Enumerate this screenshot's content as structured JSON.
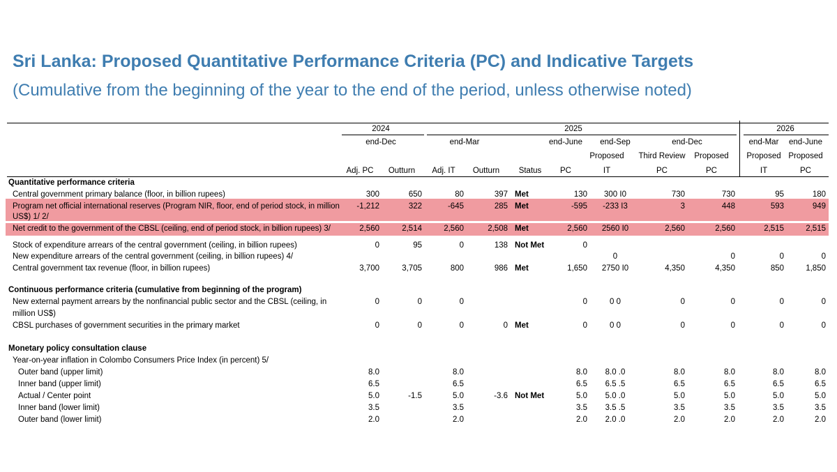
{
  "title": "Sri Lanka: Proposed Quantitative Performance Criteria (PC) and Indicative Targets",
  "subtitle": "(Cumulative from the beginning of the year to the end of the period, unless otherwise noted)",
  "header": {
    "years": [
      "2024",
      "2025",
      "2026"
    ],
    "periods": [
      "end-Dec",
      "end-Mar",
      "end-June",
      "end-Sep",
      "end-Dec",
      "end-Mar",
      "end-June"
    ],
    "row2": [
      "Proposed",
      "Third Review",
      "Proposed",
      "Proposed",
      "Proposed"
    ],
    "cols": [
      "Adj. PC",
      "Outturn",
      "Adj. IT",
      "Outturn",
      "Status",
      "PC",
      "IT",
      "PC",
      "PC",
      "IT",
      "PC"
    ]
  },
  "sections": [
    {
      "title": "Quantitative performance criteria",
      "rows": [
        {
          "label": "Central government primary balance (floor, in billion rupees)",
          "values": [
            "300",
            "650",
            "80",
            "397",
            "Met",
            "130",
            "300 I0",
            "730",
            "730",
            "95",
            "180"
          ]
        },
        {
          "label": "Program net official international reserves (Program NIR, floor, end of period stock, in million",
          "label2": "US$) 1/ 2/",
          "values": [
            "-1,212",
            "322",
            "-645",
            "285",
            "Met",
            "-595",
            "-233 I3",
            "3",
            "448",
            "593",
            "949"
          ]
        },
        {
          "label": "Net credit to the government of the CBSL (ceiling, end of period stock, in billion rupees) 3/",
          "values": [
            "2,560",
            "2,514",
            "2,560",
            "2,508",
            "Met",
            "2,560",
            "2560 I0",
            "2,560",
            "2,560",
            "2,515",
            "2,515"
          ]
        },
        {
          "label": "Stock of expenditure arrears of the central government (ceiling, in billion rupees)",
          "values": [
            "0",
            "95",
            "0",
            "138",
            "Not Met",
            "0",
            "",
            "",
            "",
            "",
            ""
          ]
        },
        {
          "label": "New expenditure arrears of the central government (ceiling, in billion rupees) 4/",
          "values": [
            "",
            "",
            "",
            "",
            "",
            "",
            "0",
            "",
            "0",
            "0",
            "0"
          ]
        },
        {
          "label": "Central government tax revenue (floor, in billion rupees)",
          "values": [
            "3,700",
            "3,705",
            "800",
            "986",
            "Met",
            "1,650",
            "2750 I0",
            "4,350",
            "4,350",
            "850",
            "1,850"
          ]
        }
      ]
    },
    {
      "title": "Continuous performance criteria (cumulative from beginning of the program)",
      "rows": [
        {
          "label": "New external payment arrears by the nonfinancial public sector and the CBSL (ceiling, in",
          "label2": "million US$)",
          "values": [
            "0",
            "0",
            "0",
            "",
            "",
            "0",
            "0 0",
            "0",
            "0",
            "0",
            "0"
          ]
        },
        {
          "label": "CBSL purchases of government securities in the primary market",
          "values": [
            "0",
            "0",
            "0",
            "0",
            "Met",
            "0",
            "0 0",
            "0",
            "0",
            "0",
            "0"
          ]
        }
      ]
    },
    {
      "title": "Monetary policy consultation clause",
      "subtitle": "Year-on-year inflation in Colombo Consumers Price Index (in percent) 5/",
      "rows": [
        {
          "label": "Outer band (upper limit)",
          "values": [
            "8.0",
            "",
            "8.0",
            "",
            "",
            "8.0",
            "8.0 .0",
            "8.0",
            "8.0",
            "8.0",
            "8.0"
          ]
        },
        {
          "label": "Inner band (upper limit)",
          "values": [
            "6.5",
            "",
            "6.5",
            "",
            "",
            "6.5",
            "6.5 .5",
            "6.5",
            "6.5",
            "6.5",
            "6.5"
          ]
        },
        {
          "label": "Actual / Center point",
          "values": [
            "5.0",
            "-1.5",
            "5.0",
            "-3.6",
            "Not Met",
            "5.0",
            "5.0 .0",
            "5.0",
            "5.0",
            "5.0",
            "5.0"
          ]
        },
        {
          "label": "Inner band (lower limit)",
          "values": [
            "3.5",
            "",
            "3.5",
            "",
            "",
            "3.5",
            "3.5 .5",
            "3.5",
            "3.5",
            "3.5",
            "3.5"
          ]
        },
        {
          "label": "Outer band (lower limit)",
          "values": [
            "2.0",
            "",
            "2.0",
            "",
            "",
            "2.0",
            "2.0 .0",
            "2.0",
            "2.0",
            "2.0",
            "2.0"
          ]
        }
      ]
    }
  ]
}
